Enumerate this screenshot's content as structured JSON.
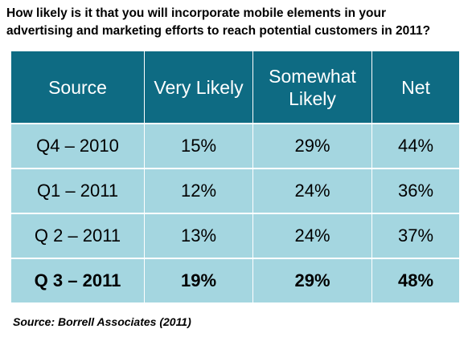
{
  "title_lines": [
    "How likely is it that you will incorporate mobile elements in your",
    "advertising and marketing efforts to reach  potential customers in 2011?"
  ],
  "chart_data": {
    "type": "table",
    "columns": [
      "Source",
      "Very Likely",
      "Somewhat Likely",
      "Net"
    ],
    "rows": [
      {
        "source": "Q4 – 2010",
        "very_likely": "15%",
        "somewhat_likely": "29%",
        "net": "44%"
      },
      {
        "source": "Q1 – 2011",
        "very_likely": "12%",
        "somewhat_likely": "24%",
        "net": "36%"
      },
      {
        "source": "Q 2 – 2011",
        "very_likely": "13%",
        "somewhat_likely": "24%",
        "net": "37%"
      },
      {
        "source": "Q 3 – 2011",
        "very_likely": "19%",
        "somewhat_likely": "29%",
        "net": "48%"
      }
    ],
    "highlighted_row": "Q 3 – 2011"
  },
  "footer": {
    "source": "Source: Borrell Associates (2011)"
  },
  "colors": {
    "header_bg": "#0e6b83",
    "body_bg": "#a4d6e0"
  }
}
